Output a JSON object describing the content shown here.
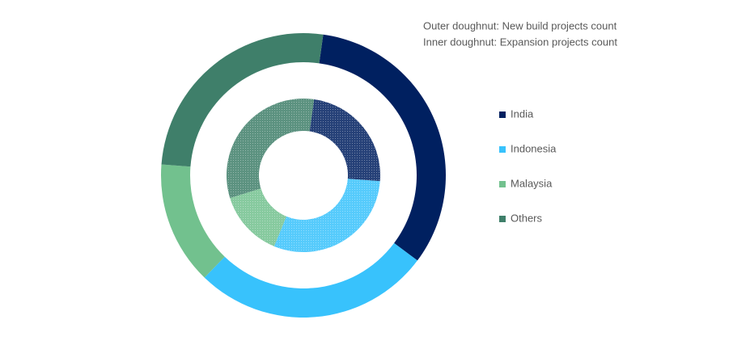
{
  "chart_data": {
    "type": "doughnut",
    "notes": [
      "Outer doughnut: New  build projects count",
      "Inner doughnut: Expansion projects count"
    ],
    "categories": [
      "India",
      "Indonesia",
      "Malaysia",
      "Others"
    ],
    "colors": [
      "#002060",
      "#38c2fc",
      "#72c18e",
      "#3f7f6a"
    ],
    "series": [
      {
        "values": [
          33,
          27,
          14,
          26
        ]
      },
      {
        "values": [
          24,
          30,
          14,
          32
        ]
      }
    ],
    "legend": "right"
  }
}
